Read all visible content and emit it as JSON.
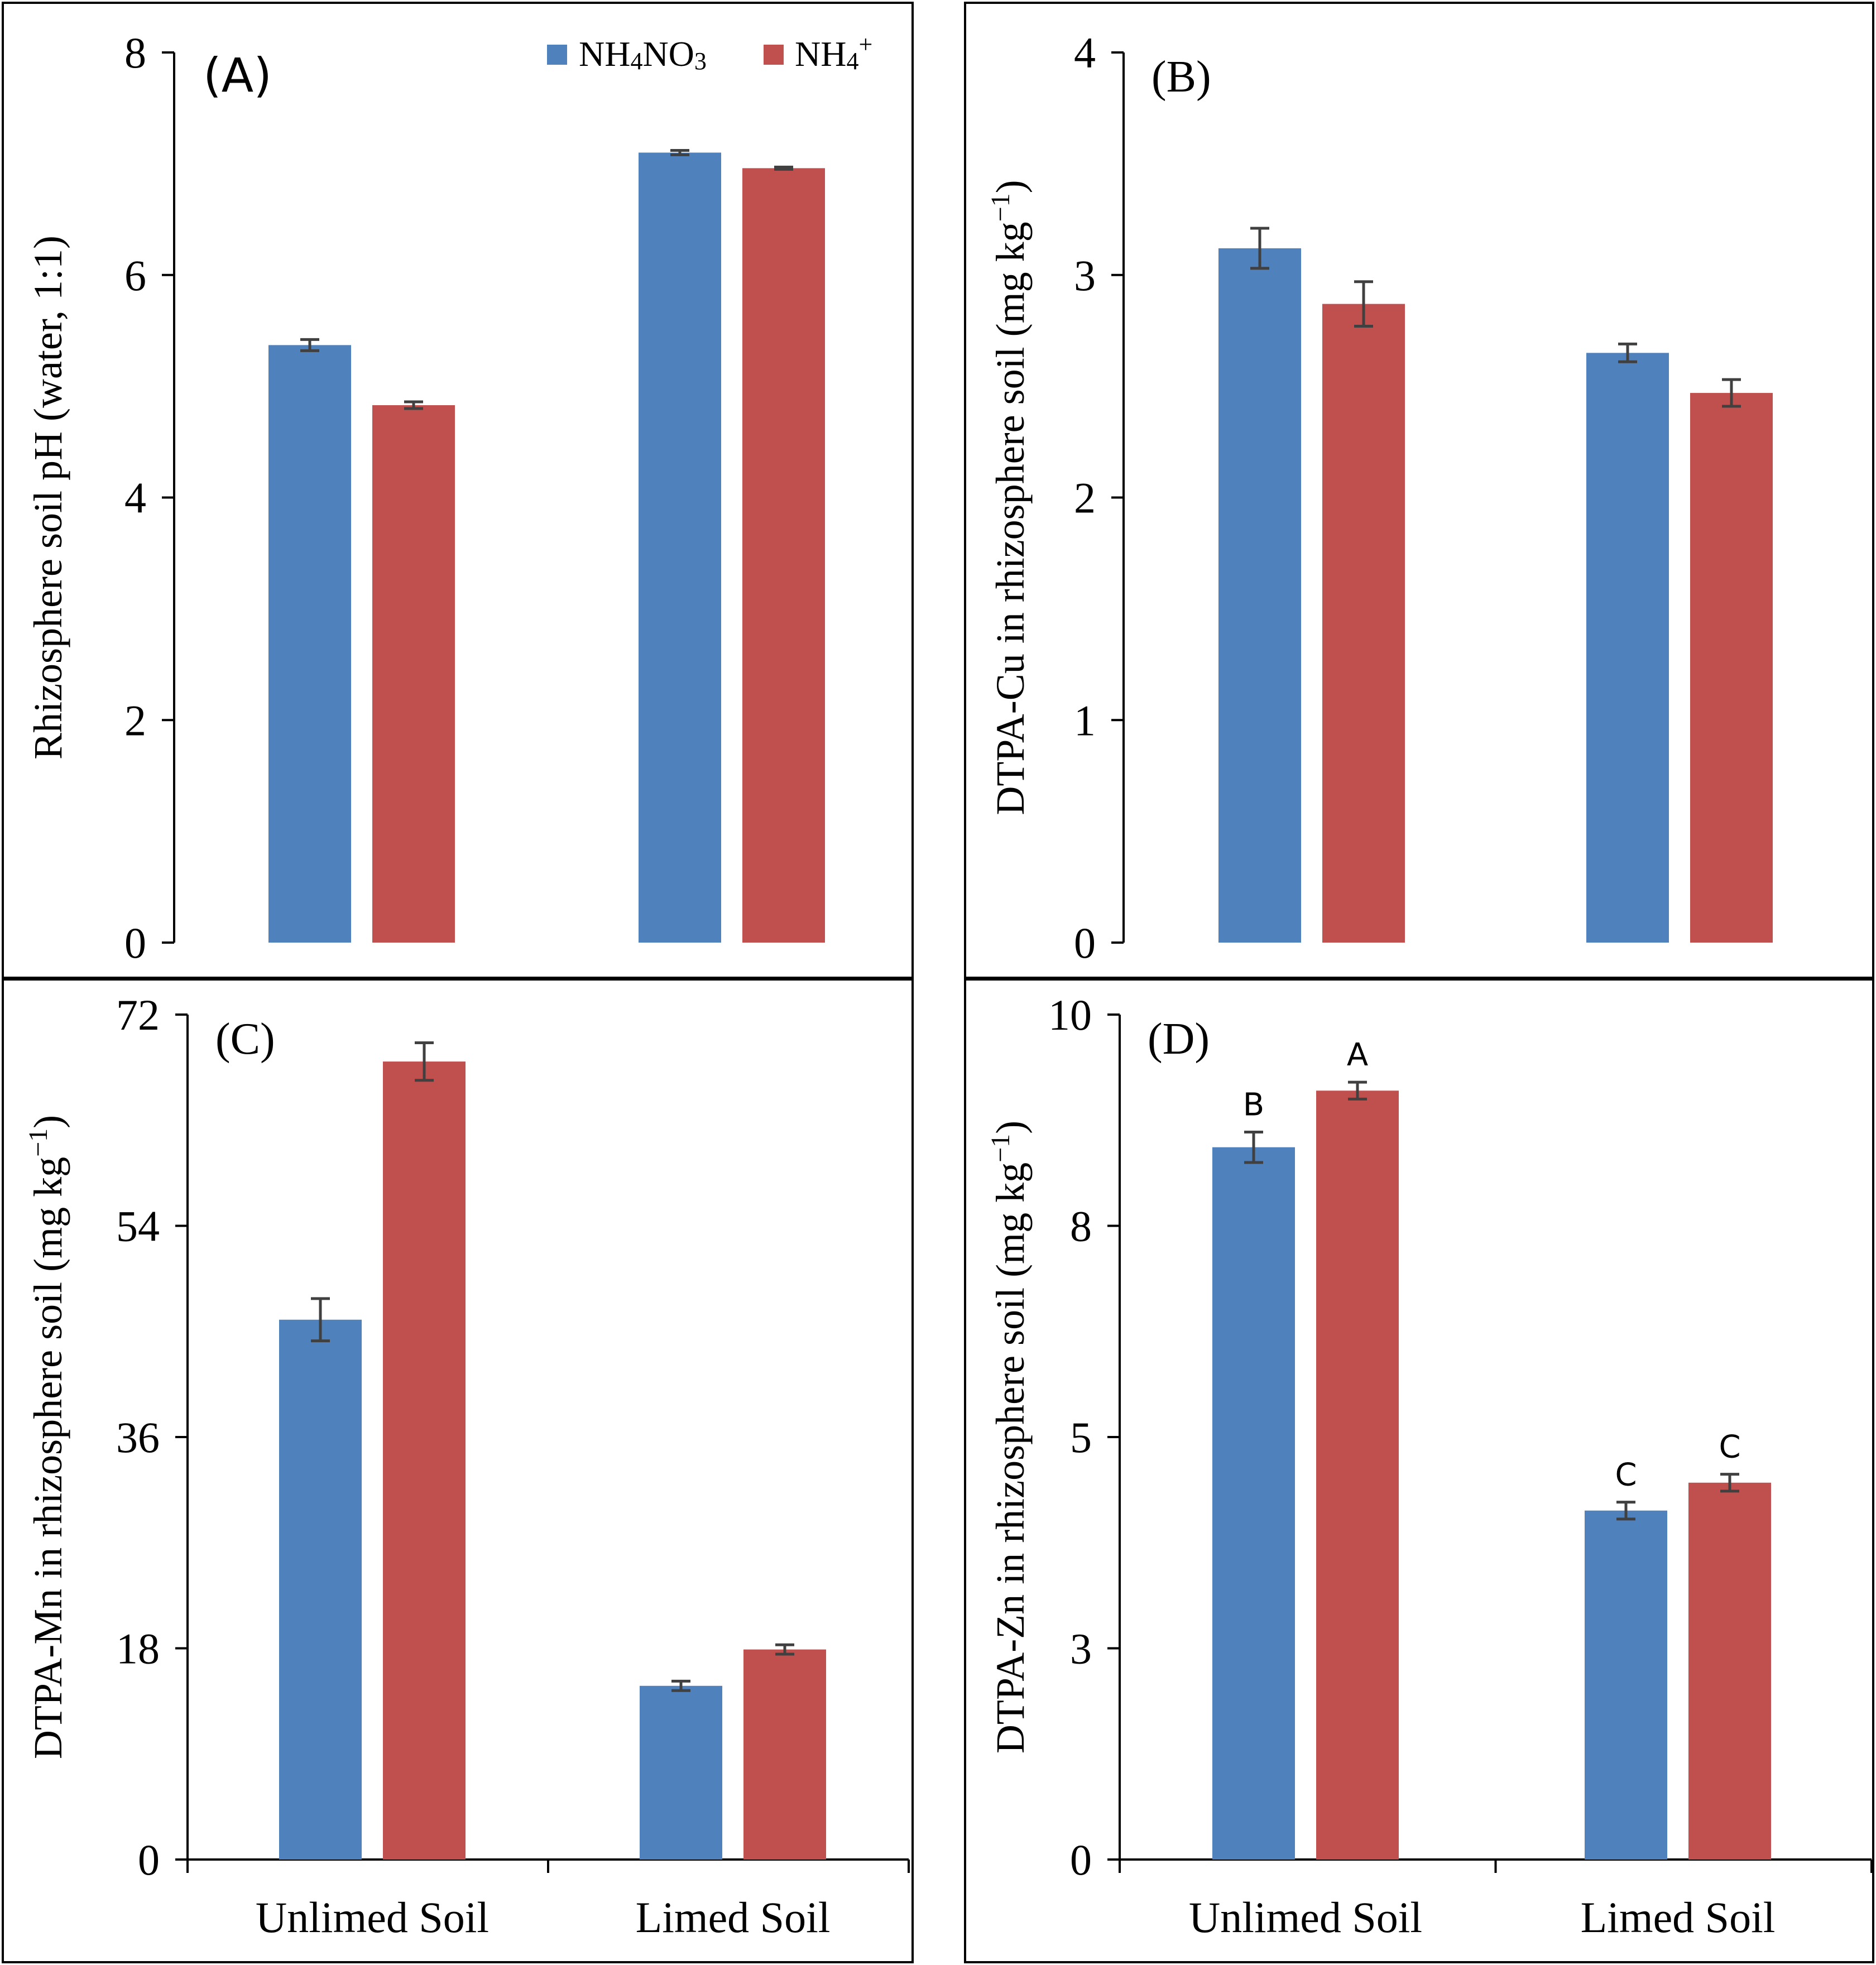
{
  "colors": {
    "series1": "#4F81BD",
    "series2": "#C0504D",
    "error_bar": "#404040",
    "axis": "#000000"
  },
  "legend": {
    "items": [
      {
        "label": "NH4NO3",
        "base": "NH",
        "sub1": "4",
        "mid": "NO",
        "sub2": "3",
        "color": "#4F81BD"
      },
      {
        "label": "NH4+",
        "base": "NH",
        "sub1": "4",
        "sup": "+",
        "color": "#C0504D"
      }
    ]
  },
  "chart_data": [
    {
      "panel": "(A)",
      "type": "bar",
      "ylabel": "Rhizosphere soil pH (water, 1:1)",
      "ylim": [
        0,
        8
      ],
      "yticks": [
        "0",
        "2",
        "4",
        "6",
        "8"
      ],
      "categories": [
        "Unlimed Soil",
        "Limed Soil"
      ],
      "show_xlabels": false,
      "series": [
        {
          "name": "NH4NO3",
          "values": [
            5.37,
            7.1
          ],
          "errors": [
            0.05,
            0.02
          ]
        },
        {
          "name": "NH4+",
          "values": [
            4.83,
            6.96
          ],
          "errors": [
            0.03,
            0.01
          ]
        }
      ],
      "letters": []
    },
    {
      "panel": "(B)",
      "type": "bar",
      "ylabel": "DTPA-Cu in rhizosphere soil (mg kg",
      "ylabel_sup": "−1",
      "ylabel_end": ")",
      "ylim": [
        0,
        4
      ],
      "yticks": [
        "0",
        "1",
        "2",
        "3",
        "4"
      ],
      "categories": [
        "Unlimed Soil",
        "Limed Soil"
      ],
      "show_xlabels": false,
      "series": [
        {
          "name": "NH4NO3",
          "values": [
            3.12,
            2.65
          ],
          "errors": [
            0.09,
            0.04
          ]
        },
        {
          "name": "NH4+",
          "values": [
            2.87,
            2.47
          ],
          "errors": [
            0.1,
            0.06
          ]
        }
      ],
      "letters": []
    },
    {
      "panel": "(C)",
      "type": "bar",
      "ylabel": "DTPA-Mn in rhizosphere soil (mg kg",
      "ylabel_sup": "−1",
      "ylabel_end": ")",
      "ylim": [
        0,
        72
      ],
      "yticks": [
        "0",
        "18",
        "36",
        "54",
        "72"
      ],
      "categories": [
        "Unlimed Soil",
        "Limed Soil"
      ],
      "show_xlabels": true,
      "series": [
        {
          "name": "NH4NO3",
          "values": [
            46.0,
            14.8
          ],
          "errors": [
            1.8,
            0.4
          ]
        },
        {
          "name": "NH4+",
          "values": [
            68.0,
            17.9
          ],
          "errors": [
            1.6,
            0.4
          ]
        }
      ],
      "letters": []
    },
    {
      "panel": "(D)",
      "type": "bar",
      "ylabel": "DTPA-Zn in rhizosphere soil (mg kg",
      "ylabel_sup": "−1",
      "ylabel_end": ")",
      "ylim": [
        0,
        10
      ],
      "yticks": [
        "0",
        "3",
        "5",
        "8",
        "10"
      ],
      "ytick_values": [
        0,
        2.5,
        5,
        7.5,
        10
      ],
      "categories": [
        "Unlimed Soil",
        "Limed Soil"
      ],
      "show_xlabels": true,
      "series": [
        {
          "name": "NH4NO3",
          "values": [
            8.43,
            4.13
          ],
          "errors": [
            0.18,
            0.1
          ]
        },
        {
          "name": "NH4+",
          "values": [
            9.1,
            4.46
          ],
          "errors": [
            0.1,
            0.1
          ]
        }
      ],
      "letters": [
        [
          "B",
          "C"
        ],
        [
          "A",
          "C"
        ]
      ]
    }
  ]
}
